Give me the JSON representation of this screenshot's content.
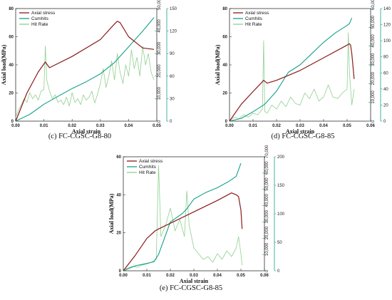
{
  "colors": {
    "stress": "#8b1a1a",
    "cumhits": "#14a08a",
    "hitrate": "#8fd08f"
  },
  "chart_data": [
    {
      "type": "line",
      "caption": "(c) FC-CGSC-G8-80",
      "xlabel": "Axial strain",
      "ylabel": "Axial load(MPa)",
      "xlim": [
        0,
        0.05
      ],
      "xticks": [
        0,
        0.01,
        0.02,
        0.03,
        0.04,
        0.05
      ],
      "ylim": [
        0,
        80
      ],
      "yticks": [
        0,
        20,
        40,
        60,
        80
      ],
      "cum_lim": [
        0,
        50000
      ],
      "cum_ticks": [
        0,
        10000,
        20000,
        30000,
        40000,
        50000
      ],
      "rate_lim": [
        0,
        150
      ],
      "rate_ticks": [
        0,
        30,
        60,
        90,
        120,
        150
      ],
      "legend": [
        "Axial stress",
        "Cumhits",
        "Hit Rate"
      ],
      "series": [
        {
          "name": "Axial stress",
          "axis": "left",
          "x": [
            0,
            0.004,
            0.008,
            0.0105,
            0.0112,
            0.012,
            0.02,
            0.03,
            0.035,
            0.036,
            0.037,
            0.04,
            0.045,
            0.049
          ],
          "y": [
            0,
            20,
            35,
            42,
            40,
            38,
            46,
            58,
            69,
            71,
            70,
            60,
            52,
            51
          ]
        },
        {
          "name": "Cumhits",
          "axis": "right1",
          "x": [
            0,
            0.005,
            0.01,
            0.015,
            0.02,
            0.025,
            0.03,
            0.035,
            0.04,
            0.045,
            0.049
          ],
          "y": [
            0,
            3000,
            7500,
            11000,
            14500,
            17500,
            21000,
            26000,
            33000,
            40000,
            46000
          ]
        },
        {
          "name": "Hit Rate",
          "axis": "right2",
          "x": [
            0,
            0.001,
            0.002,
            0.003,
            0.004,
            0.005,
            0.006,
            0.007,
            0.008,
            0.009,
            0.01,
            0.0105,
            0.011,
            0.012,
            0.013,
            0.014,
            0.015,
            0.016,
            0.017,
            0.018,
            0.019,
            0.02,
            0.021,
            0.022,
            0.023,
            0.024,
            0.025,
            0.026,
            0.027,
            0.028,
            0.029,
            0.03,
            0.031,
            0.032,
            0.033,
            0.034,
            0.035,
            0.036,
            0.037,
            0.038,
            0.039,
            0.04,
            0.041,
            0.042,
            0.043,
            0.044,
            0.045,
            0.046,
            0.047,
            0.048,
            0.049
          ],
          "y": [
            5,
            15,
            22,
            30,
            25,
            38,
            30,
            35,
            28,
            40,
            42,
            100,
            55,
            40,
            30,
            35,
            25,
            28,
            22,
            32,
            20,
            38,
            25,
            30,
            22,
            35,
            28,
            32,
            40,
            24,
            36,
            50,
            70,
            45,
            60,
            80,
            55,
            90,
            65,
            50,
            75,
            60,
            95,
            70,
            85,
            60,
            100,
            75,
            90,
            65,
            55
          ]
        }
      ]
    },
    {
      "type": "line",
      "caption": "(d) FC-CGSC-G8-85",
      "xlabel": "Axial strain",
      "ylabel": "Axial load(MPa)",
      "xlim": [
        0,
        0.06
      ],
      "xticks": [
        0,
        0.01,
        0.02,
        0.03,
        0.04,
        0.05,
        0.06
      ],
      "ylim": [
        0,
        80
      ],
      "yticks": [
        0,
        20,
        40,
        60,
        80
      ],
      "cum_lim": [
        0,
        60000
      ],
      "cum_ticks": [
        0,
        10000,
        20000,
        30000,
        40000,
        50000,
        60000
      ],
      "rate_lim": [
        0,
        140
      ],
      "rate_ticks": [
        0,
        20,
        40,
        60,
        80,
        100,
        120,
        140
      ],
      "legend": [
        "Axial stress",
        "Cumhits",
        "Hit Rate"
      ],
      "series": [
        {
          "name": "Axial stress",
          "axis": "left",
          "x": [
            0,
            0.005,
            0.01,
            0.014,
            0.0145,
            0.016,
            0.02,
            0.03,
            0.04,
            0.05,
            0.051,
            0.0515,
            0.052,
            0.053
          ],
          "y": [
            0,
            12,
            21,
            28,
            29,
            27,
            29,
            36,
            45,
            54,
            55,
            54,
            48,
            30
          ]
        },
        {
          "name": "Cumhits",
          "axis": "right1",
          "x": [
            0,
            0.005,
            0.01,
            0.015,
            0.02,
            0.025,
            0.03,
            0.035,
            0.04,
            0.045,
            0.05,
            0.051,
            0.052
          ],
          "y": [
            0,
            1500,
            5000,
            9000,
            16000,
            26000,
            30000,
            36000,
            42000,
            47000,
            51000,
            52000,
            55000
          ]
        },
        {
          "name": "Hit Rate",
          "axis": "right2",
          "x": [
            0,
            0.002,
            0.004,
            0.006,
            0.008,
            0.01,
            0.012,
            0.014,
            0.0145,
            0.015,
            0.016,
            0.018,
            0.02,
            0.022,
            0.024,
            0.026,
            0.028,
            0.03,
            0.032,
            0.034,
            0.036,
            0.038,
            0.04,
            0.042,
            0.044,
            0.046,
            0.048,
            0.05,
            0.0505,
            0.051,
            0.052,
            0.053
          ],
          "y": [
            0,
            5,
            3,
            8,
            5,
            10,
            8,
            15,
            100,
            12,
            10,
            20,
            15,
            25,
            18,
            30,
            22,
            20,
            35,
            28,
            40,
            25,
            30,
            45,
            30,
            28,
            35,
            40,
            110,
            60,
            20,
            40
          ]
        }
      ]
    },
    {
      "type": "line",
      "caption": "(e) FC-CGSC-G8-85",
      "xlabel": "Axial strain",
      "ylabel": "Axial load(MPa)",
      "xlim": [
        0,
        0.06
      ],
      "xticks": [
        0,
        0.01,
        0.02,
        0.03,
        0.04,
        0.05,
        0.06
      ],
      "ylim": [
        0,
        60
      ],
      "yticks": [
        0,
        20,
        40,
        60
      ],
      "cum_lim": [
        0,
        70000
      ],
      "cum_ticks": [
        0,
        10000,
        20000,
        30000,
        40000,
        50000,
        60000,
        70000
      ],
      "rate_lim": [
        0,
        200
      ],
      "rate_ticks": [
        0,
        50,
        100,
        150,
        200
      ],
      "legend": [
        "Axial stress",
        "Cumhits",
        "Hit Rate"
      ],
      "series": [
        {
          "name": "Axial stress",
          "axis": "left",
          "x": [
            0,
            0.005,
            0.01,
            0.0135,
            0.015,
            0.02,
            0.03,
            0.04,
            0.046,
            0.048,
            0.049,
            0.05,
            0.0505
          ],
          "y": [
            0,
            8,
            17,
            21,
            22,
            25,
            31,
            37,
            41,
            40,
            39,
            32,
            22
          ]
        },
        {
          "name": "Cumhits",
          "axis": "right1",
          "x": [
            0,
            0.005,
            0.01,
            0.013,
            0.015,
            0.018,
            0.02,
            0.025,
            0.027,
            0.03,
            0.035,
            0.04,
            0.045,
            0.048,
            0.05
          ],
          "y": [
            0,
            3000,
            4500,
            5500,
            10000,
            22000,
            30000,
            35000,
            38000,
            44000,
            48000,
            51000,
            55000,
            58000,
            66000
          ]
        },
        {
          "name": "Hit Rate",
          "axis": "right2",
          "x": [
            0,
            0.002,
            0.004,
            0.006,
            0.008,
            0.01,
            0.012,
            0.014,
            0.015,
            0.016,
            0.018,
            0.02,
            0.022,
            0.024,
            0.026,
            0.027,
            0.028,
            0.03,
            0.032,
            0.034,
            0.036,
            0.038,
            0.04,
            0.042,
            0.044,
            0.046,
            0.048,
            0.049,
            0.05,
            0.0505
          ],
          "y": [
            2,
            5,
            8,
            6,
            10,
            12,
            15,
            20,
            185,
            60,
            80,
            110,
            70,
            90,
            60,
            140,
            80,
            40,
            30,
            20,
            25,
            15,
            30,
            20,
            35,
            25,
            40,
            60,
            30,
            10
          ]
        }
      ]
    }
  ]
}
